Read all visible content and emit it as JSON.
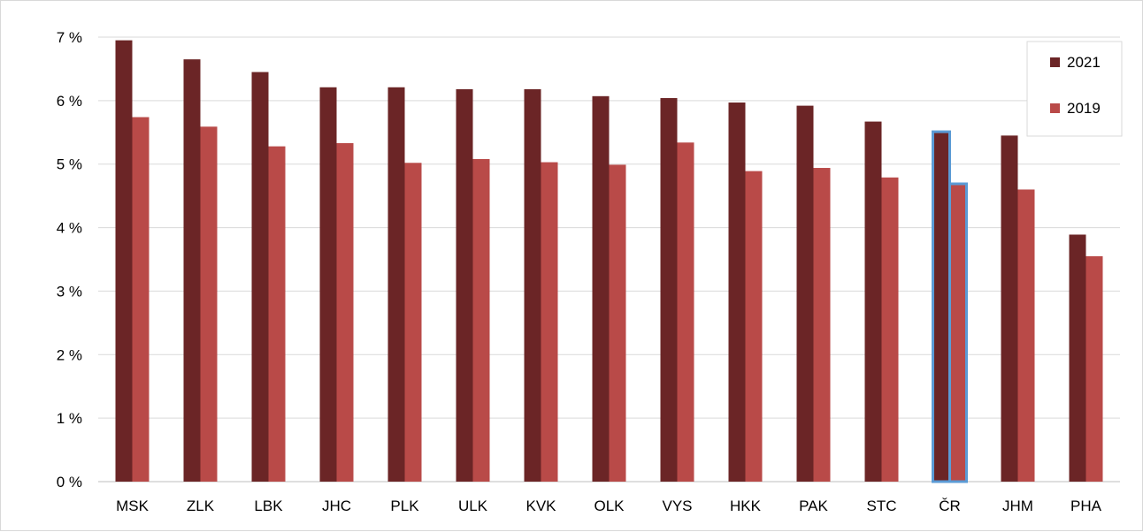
{
  "chart_data": {
    "type": "bar",
    "categories": [
      "MSK",
      "ZLK",
      "LBK",
      "JHC",
      "PLK",
      "ULK",
      "KVK",
      "OLK",
      "VYS",
      "HKK",
      "PAK",
      "STC",
      "ČR",
      "JHM",
      "PHA"
    ],
    "series": [
      {
        "name": "2021",
        "color": "#6b2526",
        "values": [
          6.95,
          6.65,
          6.45,
          6.21,
          6.21,
          6.18,
          6.18,
          6.07,
          6.04,
          5.97,
          5.92,
          5.67,
          5.51,
          5.45,
          3.89
        ]
      },
      {
        "name": "2019",
        "color": "#b94a48",
        "values": [
          5.74,
          5.59,
          5.28,
          5.33,
          5.02,
          5.08,
          5.03,
          4.99,
          5.34,
          4.89,
          4.94,
          4.79,
          4.69,
          4.6,
          3.55
        ]
      }
    ],
    "highlight_category": "ČR",
    "highlight_color": "#5b9bd5",
    "ylim": [
      0,
      7
    ],
    "yticks": [
      "0 %",
      "1 %",
      "2 %",
      "3 %",
      "4 %",
      "5 %",
      "6 %",
      "7 %"
    ],
    "grid": true,
    "legend_position": "top-right",
    "title": "",
    "xlabel": "",
    "ylabel": ""
  }
}
